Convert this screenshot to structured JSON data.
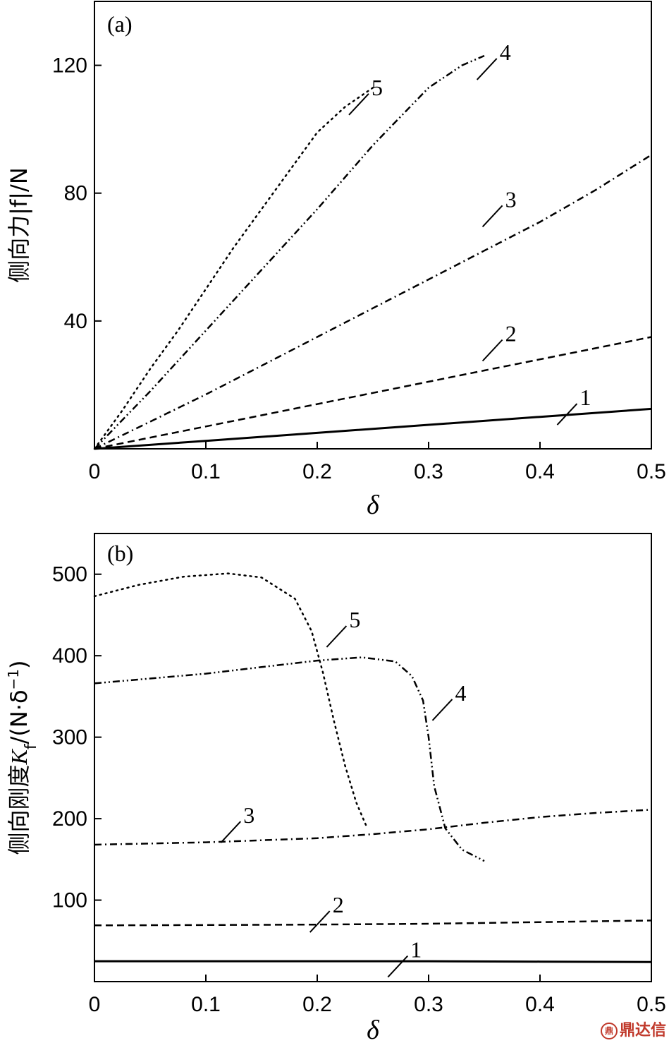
{
  "chart_data": [
    {
      "type": "line",
      "panel": "(a)",
      "xlabel": "δ",
      "ylabel": "侧向力|f|/N",
      "xlim": [
        0,
        0.5
      ],
      "ylim": [
        0,
        140
      ],
      "xticks": [
        "0",
        "0.1",
        "0.2",
        "0.3",
        "0.4",
        "0.5"
      ],
      "yticks": [
        "40",
        "80",
        "120"
      ],
      "grid": false,
      "series": [
        {
          "name": "1",
          "dash": "solid",
          "x": [
            0,
            0.1,
            0.2,
            0.3,
            0.4,
            0.5
          ],
          "y": [
            0,
            2.5,
            5,
            7.5,
            10,
            12.5
          ]
        },
        {
          "name": "2",
          "dash": "dashed",
          "x": [
            0,
            0.05,
            0.1,
            0.15,
            0.2,
            0.25,
            0.3,
            0.35,
            0.4,
            0.45,
            0.5
          ],
          "y": [
            0,
            3.5,
            7,
            10.5,
            14,
            17.5,
            21,
            24.5,
            28,
            31.5,
            35
          ]
        },
        {
          "name": "3",
          "dash": "dashdot",
          "x": [
            0,
            0.05,
            0.1,
            0.15,
            0.2,
            0.25,
            0.3,
            0.35,
            0.4,
            0.45,
            0.5
          ],
          "y": [
            0,
            8.5,
            17,
            26,
            35,
            44,
            53,
            62,
            71,
            81,
            92
          ]
        },
        {
          "name": "4",
          "dash": "dashdotdot",
          "x": [
            0,
            0.05,
            0.1,
            0.15,
            0.2,
            0.25,
            0.3,
            0.33,
            0.35
          ],
          "y": [
            0,
            18,
            37,
            56,
            75,
            95,
            113,
            120,
            123
          ]
        },
        {
          "name": "5",
          "dash": "dotted",
          "x": [
            0,
            0.025,
            0.05,
            0.075,
            0.1,
            0.125,
            0.15,
            0.175,
            0.2,
            0.225,
            0.25
          ],
          "y": [
            0,
            12,
            25,
            37,
            50,
            63,
            75,
            87,
            99,
            107,
            113
          ]
        }
      ],
      "labels": [
        {
          "text": "1",
          "x": 0.437,
          "y": 15
        },
        {
          "text": "2",
          "x": 0.37,
          "y": 35
        },
        {
          "text": "3",
          "x": 0.37,
          "y": 77
        },
        {
          "text": "4",
          "x": 0.365,
          "y": 123
        },
        {
          "text": "5",
          "x": 0.25,
          "y": 112
        }
      ]
    },
    {
      "type": "line",
      "panel": "(b)",
      "xlabel": "δ",
      "ylabel_prefix": "侧向刚度",
      "ylabel_var": "K",
      "ylabel_sub": "f",
      "ylabel_mid": "/(N·δ",
      "ylabel_sup": "−1",
      "ylabel_end": ")",
      "xlim": [
        0,
        0.5
      ],
      "ylim": [
        0,
        550
      ],
      "xticks": [
        "0",
        "0.1",
        "0.2",
        "0.3",
        "0.4",
        "0.5"
      ],
      "yticks": [
        "100",
        "200",
        "300",
        "400",
        "500"
      ],
      "grid": false,
      "series": [
        {
          "name": "1",
          "dash": "solid",
          "x": [
            0,
            0.1,
            0.2,
            0.3,
            0.4,
            0.5
          ],
          "y": [
            25,
            25,
            25,
            25,
            24.5,
            24
          ]
        },
        {
          "name": "2",
          "dash": "dashed",
          "x": [
            0,
            0.1,
            0.2,
            0.3,
            0.4,
            0.5
          ],
          "y": [
            69,
            69.5,
            70,
            71,
            73,
            75
          ]
        },
        {
          "name": "3",
          "dash": "dashdot",
          "x": [
            0,
            0.1,
            0.2,
            0.25,
            0.3,
            0.35,
            0.4,
            0.45,
            0.5
          ],
          "y": [
            168,
            171,
            176,
            181,
            187,
            195,
            202,
            207,
            211
          ]
        },
        {
          "name": "4",
          "dash": "dashdotdot",
          "x": [
            0,
            0.05,
            0.1,
            0.15,
            0.2,
            0.24,
            0.27,
            0.285,
            0.295,
            0.3,
            0.305,
            0.315,
            0.33,
            0.35
          ],
          "y": [
            366,
            372,
            378,
            386,
            394,
            398,
            393,
            375,
            345,
            300,
            240,
            188,
            162,
            148
          ]
        },
        {
          "name": "5",
          "dash": "dotted",
          "x": [
            0,
            0.04,
            0.08,
            0.12,
            0.15,
            0.18,
            0.195,
            0.205,
            0.215,
            0.225,
            0.235,
            0.245
          ],
          "y": [
            473,
            487,
            497,
            501,
            496,
            470,
            430,
            380,
            320,
            265,
            220,
            188
          ]
        }
      ],
      "labels": [
        {
          "text": "1",
          "x": 0.285,
          "y": 35
        },
        {
          "text": "2",
          "x": 0.215,
          "y": 90
        },
        {
          "text": "3",
          "x": 0.135,
          "y": 200
        },
        {
          "text": "4",
          "x": 0.325,
          "y": 350
        },
        {
          "text": "5",
          "x": 0.23,
          "y": 440
        }
      ]
    }
  ],
  "watermark": {
    "icon": "鼎",
    "text": "鼎达信"
  }
}
